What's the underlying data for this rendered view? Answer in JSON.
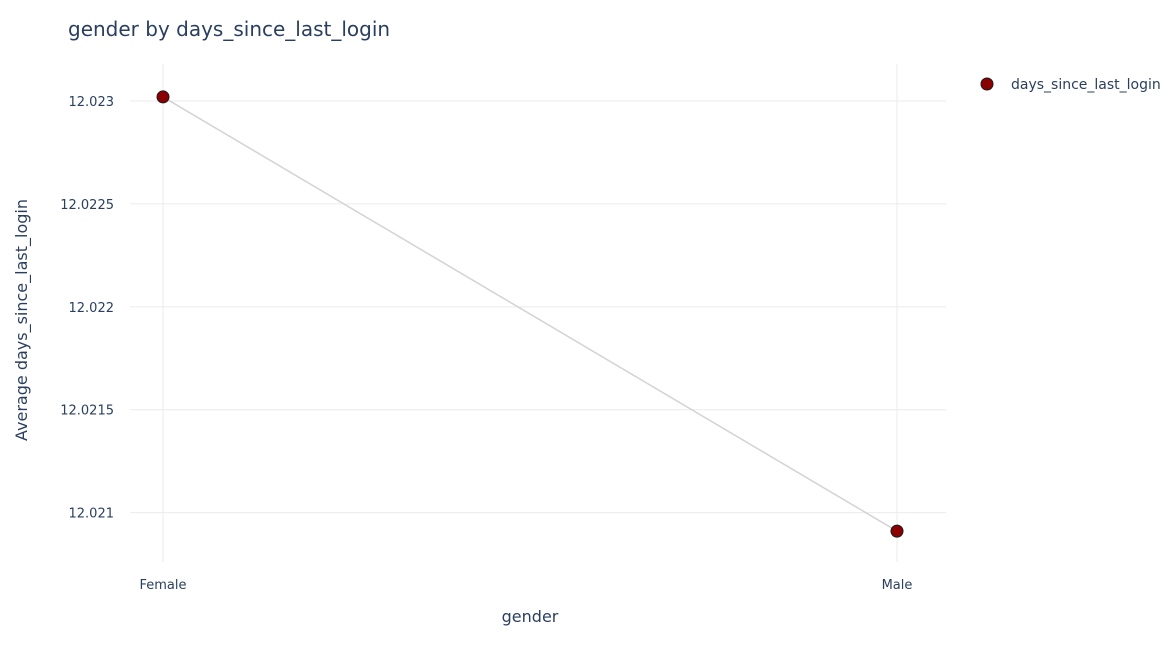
{
  "chart_data": {
    "type": "line",
    "title": "gender by days_since_last_login",
    "xlabel": "gender",
    "ylabel": "Average days_since_last_login",
    "categories": [
      "Female",
      "Male"
    ],
    "series": [
      {
        "name": "days_since_last_login",
        "values": [
          12.02302,
          12.02091
        ]
      }
    ],
    "ylim": [
      12.02076,
      12.02318
    ],
    "yticks": [
      12.021,
      12.0215,
      12.022,
      12.0225,
      12.023
    ],
    "ytick_labels": [
      "12.021",
      "12.0215",
      "12.022",
      "12.0225",
      "12.023"
    ],
    "grid": true,
    "legend": "top-right",
    "colors": {
      "marker_fill": "#8b0000",
      "marker_edge": "#1a1a1a",
      "line": "#d3d3d3",
      "grid": "#ebebeb",
      "text": "#2a3f5f"
    }
  }
}
